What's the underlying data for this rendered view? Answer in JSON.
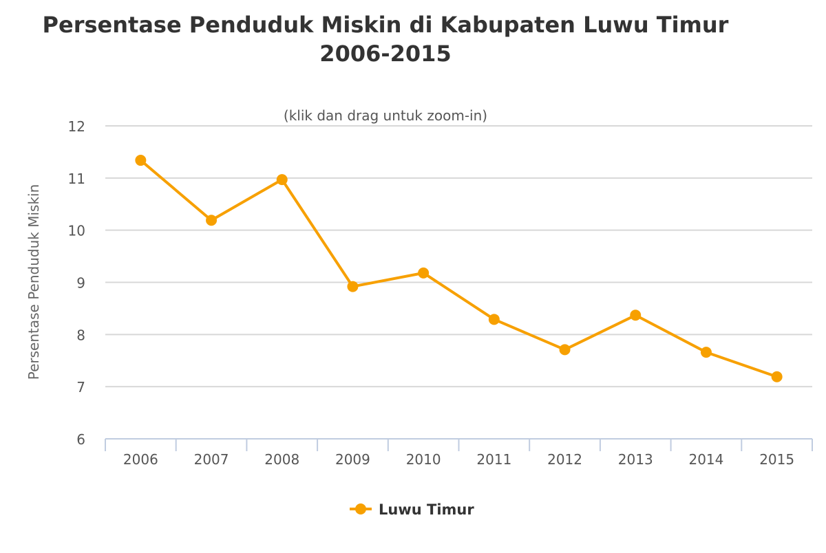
{
  "chart_data": {
    "type": "line",
    "title": "Persentase Penduduk Miskin di Kabupaten Luwu Timur 2006-2015",
    "title_lines": [
      "Persentase Penduduk Miskin di Kabupaten Luwu Timur",
      "2006-2015"
    ],
    "subtitle": "(klik dan drag untuk zoom-in)",
    "xlabel": "",
    "ylabel": "Persentase Penduduk Miskin",
    "categories": [
      "2006",
      "2007",
      "2008",
      "2009",
      "2010",
      "2011",
      "2012",
      "2013",
      "2014",
      "2015"
    ],
    "ylim": [
      6,
      12
    ],
    "yticks": [
      6,
      7,
      8,
      9,
      10,
      11,
      12
    ],
    "grid": true,
    "legend_position": "bottom",
    "series": [
      {
        "name": "Luwu Timur",
        "color": "#f7a000",
        "values": [
          11.34,
          10.19,
          10.97,
          8.92,
          9.18,
          8.29,
          7.71,
          8.37,
          7.66,
          7.19
        ]
      }
    ]
  }
}
